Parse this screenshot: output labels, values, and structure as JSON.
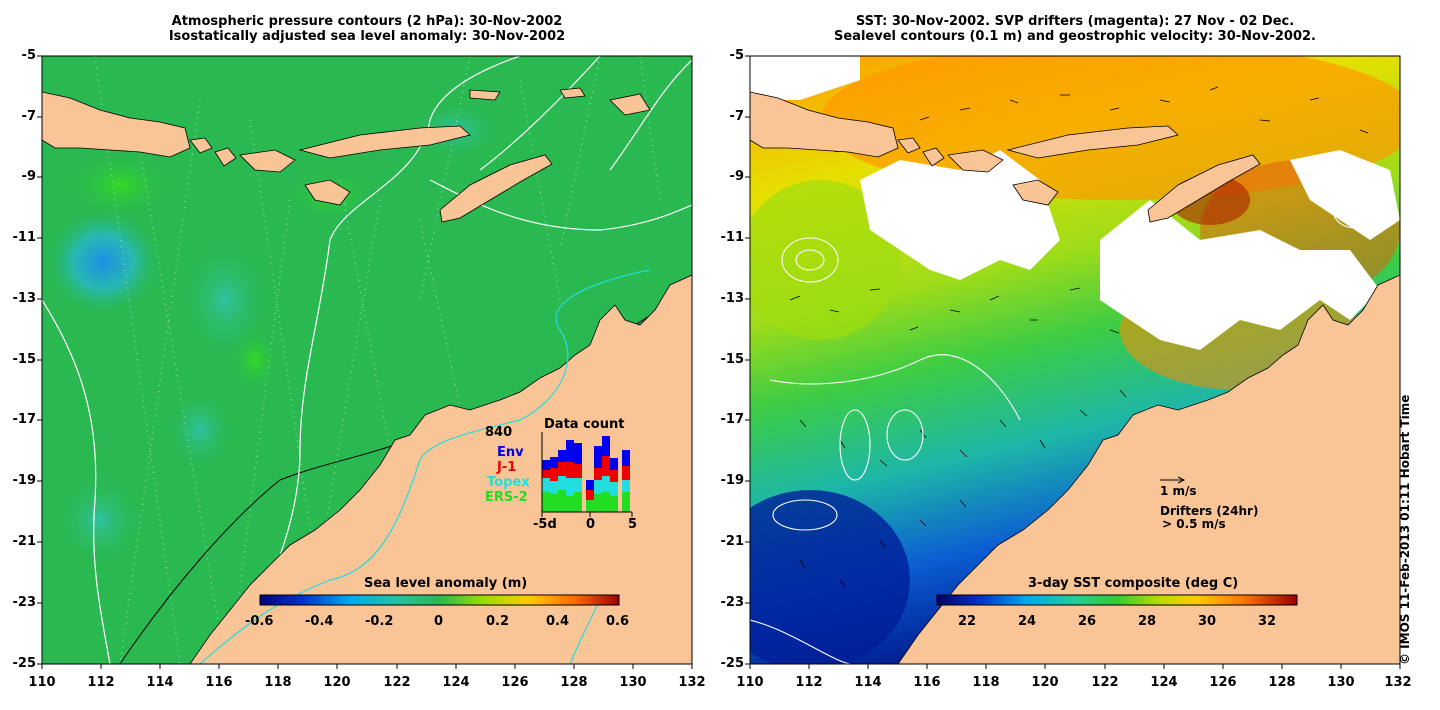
{
  "left_panel": {
    "title_line1": "Atmospheric pressure contours (2 hPa): 30-Nov-2002",
    "title_line2": "Isostatically adjusted sea level anomaly: 30-Nov-2002",
    "y_ticks": [
      "-5",
      "-7",
      "-9",
      "-11",
      "-13",
      "-15",
      "-17",
      "-19",
      "-21",
      "-23",
      "-25"
    ],
    "x_ticks": [
      "110",
      "112",
      "114",
      "116",
      "118",
      "120",
      "122",
      "124",
      "126",
      "128",
      "130",
      "132"
    ],
    "colorbar": {
      "label": "Sea level anomaly (m)",
      "ticks": [
        "-0.6",
        "-0.4",
        "-0.2",
        "0",
        "0.2",
        "0.4",
        "0.6"
      ]
    },
    "data_count": {
      "title": "Data count",
      "max_label": "840",
      "legend": [
        {
          "name": "Env",
          "color": "#0000ee"
        },
        {
          "name": "J-1",
          "color": "#ee0000"
        },
        {
          "name": "Topex",
          "color": "#22dddd"
        },
        {
          "name": "ERS-2",
          "color": "#22dd22"
        }
      ],
      "x_ticks": [
        "-5d",
        "0",
        "5"
      ]
    },
    "colors": {
      "ocean": "#2ab851",
      "land": "#f9c496"
    }
  },
  "right_panel": {
    "title_line1": "SST: 30-Nov-2002. SVP drifters (magenta): 27 Nov - 02 Dec.",
    "title_line2": "Sealevel contours (0.1 m) and geostrophic velocity: 30-Nov-2002.",
    "y_ticks": [
      "-5",
      "-7",
      "-9",
      "-11",
      "-13",
      "-15",
      "-17",
      "-19",
      "-21",
      "-23",
      "-25"
    ],
    "x_ticks": [
      "110",
      "112",
      "114",
      "116",
      "118",
      "120",
      "122",
      "124",
      "126",
      "128",
      "130",
      "132"
    ],
    "colorbar": {
      "label": "3-day SST composite (deg C)",
      "ticks": [
        "22",
        "24",
        "26",
        "28",
        "30",
        "32"
      ]
    },
    "velocity_legend": "1 m/s",
    "drifters_legend": "Drifters (24hr)",
    "drifters_speed": "> 0.5 m/s",
    "colors": {
      "land": "#f9c496",
      "cloud": "#ffffff"
    }
  },
  "copyright": "© IMOS 11-Feb-2013 01:11 Hobart Time"
}
